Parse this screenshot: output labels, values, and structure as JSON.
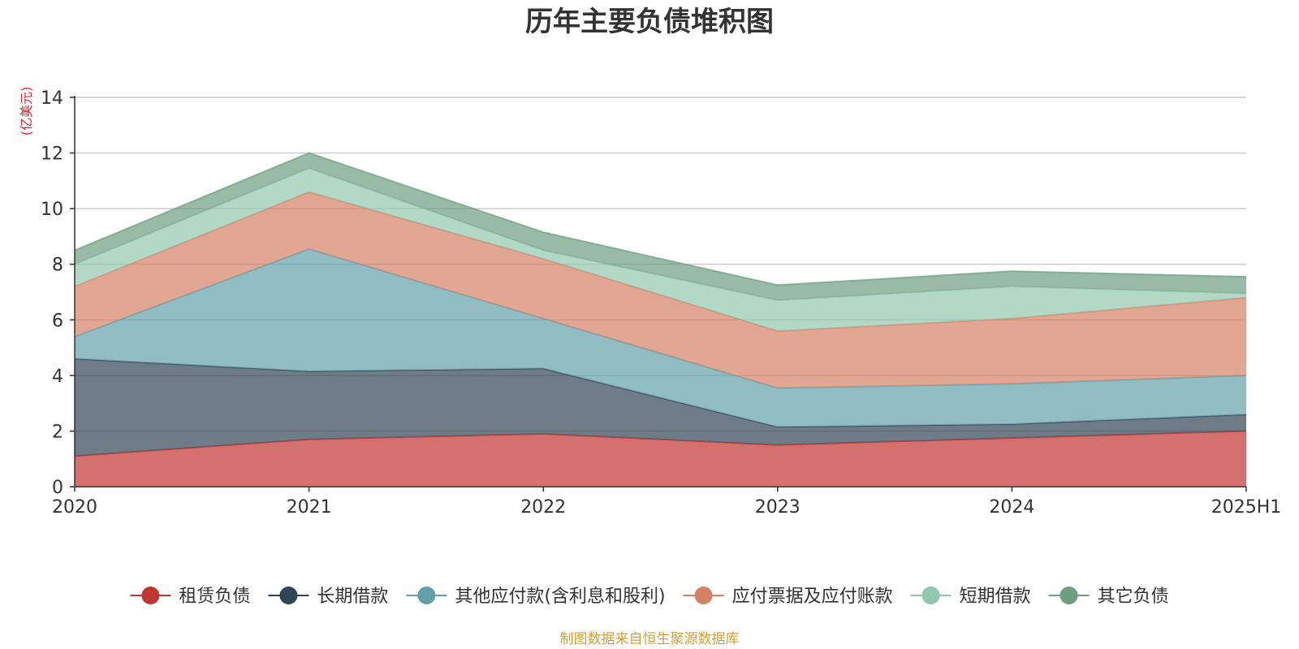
{
  "chart_data": {
    "type": "area",
    "stacked": true,
    "title": "历年主要负债堆积图",
    "ylabel": "(亿美元)",
    "xlabel": "",
    "categories": [
      "2020",
      "2021",
      "2022",
      "2023",
      "2024",
      "2025H1"
    ],
    "ylim": [
      0,
      14
    ],
    "yticks": [
      0,
      2,
      4,
      6,
      8,
      10,
      12,
      14
    ],
    "grid": true,
    "legend_position": "bottom",
    "series": [
      {
        "name": "租赁负债",
        "color": "#c23531",
        "values": [
          1.1,
          1.7,
          1.9,
          1.5,
          1.75,
          2.0
        ]
      },
      {
        "name": "长期借款",
        "color": "#2f4554",
        "values": [
          3.5,
          2.45,
          2.35,
          0.65,
          0.5,
          0.6
        ]
      },
      {
        "name": "其他应付款(含利息和股利)",
        "color": "#61a0a8",
        "values": [
          0.8,
          4.4,
          1.8,
          1.4,
          1.45,
          1.4
        ]
      },
      {
        "name": "应付票据及应付账款",
        "color": "#d48265",
        "values": [
          1.8,
          2.05,
          2.15,
          2.05,
          2.35,
          2.8
        ]
      },
      {
        "name": "短期借款",
        "color": "#91c7ae",
        "values": [
          0.8,
          0.85,
          0.3,
          1.1,
          1.15,
          0.15
        ]
      },
      {
        "name": "其它负债",
        "color": "#6e9e80",
        "values": [
          0.5,
          0.55,
          0.65,
          0.55,
          0.55,
          0.6
        ]
      }
    ]
  },
  "source_note": "制图数据来自恒生聚源数据库"
}
